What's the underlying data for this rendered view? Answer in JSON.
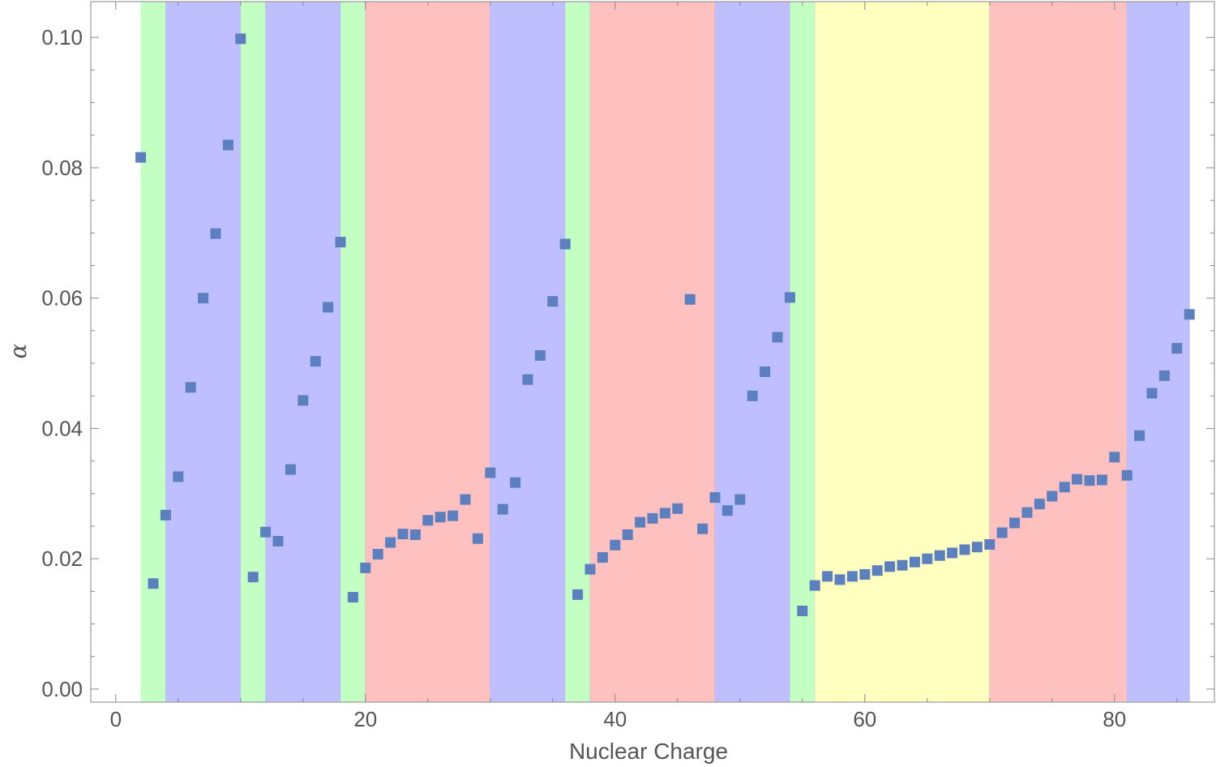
{
  "chart_data": {
    "type": "scatter",
    "title": "",
    "xlabel": "Nuclear Charge",
    "ylabel": "α",
    "xlim": [
      -2,
      88
    ],
    "ylim": [
      -0.002,
      0.1055
    ],
    "grid": false,
    "legend": "none",
    "x_ticks": [
      0,
      20,
      40,
      60,
      80
    ],
    "x_tick_labels": [
      "0",
      "20",
      "40",
      "60",
      "80"
    ],
    "y_ticks": [
      0.0,
      0.02,
      0.04,
      0.06,
      0.08,
      0.1
    ],
    "y_tick_labels": [
      "0.00",
      "0.02",
      "0.04",
      "0.06",
      "0.08",
      "0.10"
    ],
    "x_minor_step": 5,
    "y_minor_step": 0.005,
    "marker_color": "#5b7fbf",
    "bands": [
      {
        "from": 2,
        "to": 4,
        "color": "#c3ffc3"
      },
      {
        "from": 4,
        "to": 10,
        "color": "#bfbfff"
      },
      {
        "from": 10,
        "to": 12,
        "color": "#c3ffc3"
      },
      {
        "from": 12,
        "to": 18,
        "color": "#bfbfff"
      },
      {
        "from": 18,
        "to": 20,
        "color": "#c3ffc3"
      },
      {
        "from": 20,
        "to": 30,
        "color": "#ffc0c0"
      },
      {
        "from": 30,
        "to": 36,
        "color": "#bfbfff"
      },
      {
        "from": 36,
        "to": 38,
        "color": "#c3ffc3"
      },
      {
        "from": 38,
        "to": 48,
        "color": "#ffc0c0"
      },
      {
        "from": 48,
        "to": 54,
        "color": "#bfbfff"
      },
      {
        "from": 54,
        "to": 56,
        "color": "#c3ffc3"
      },
      {
        "from": 56,
        "to": 70,
        "color": "#ffffc0"
      },
      {
        "from": 70,
        "to": 81,
        "color": "#ffc0c0"
      },
      {
        "from": 81,
        "to": 86,
        "color": "#bfbfff"
      }
    ],
    "series": [
      {
        "x": [
          2,
          3,
          4,
          5,
          6,
          7,
          8,
          9,
          10,
          11,
          12,
          13,
          14,
          15,
          16,
          17,
          18,
          19,
          20,
          21,
          22,
          23,
          24,
          25,
          26,
          27,
          28,
          29,
          30,
          31,
          32,
          33,
          34,
          35,
          36,
          37,
          38,
          39,
          40,
          41,
          42,
          43,
          44,
          45,
          46,
          47,
          48,
          49,
          50,
          51,
          52,
          53,
          54,
          55,
          56,
          57,
          58,
          59,
          60,
          61,
          62,
          63,
          64,
          65,
          66,
          67,
          68,
          69,
          70,
          71,
          72,
          73,
          74,
          75,
          76,
          77,
          78,
          79,
          80,
          81,
          82,
          83,
          84,
          85,
          86
        ],
        "y": [
          0.0816,
          0.0162,
          0.0267,
          0.0326,
          0.0463,
          0.06,
          0.0699,
          0.0835,
          0.0998,
          0.0172,
          0.0241,
          0.0227,
          0.0337,
          0.0443,
          0.0503,
          0.0586,
          0.0686,
          0.0141,
          0.0186,
          0.0207,
          0.0225,
          0.0238,
          0.0237,
          0.0259,
          0.0264,
          0.0266,
          0.0291,
          0.0231,
          0.0332,
          0.0276,
          0.0317,
          0.0475,
          0.0512,
          0.0595,
          0.0683,
          0.0145,
          0.0184,
          0.0202,
          0.0221,
          0.0237,
          0.0256,
          0.0262,
          0.027,
          0.0277,
          0.0598,
          0.0246,
          0.0294,
          0.0274,
          0.0291,
          0.045,
          0.0487,
          0.054,
          0.0601,
          0.012,
          0.0159,
          0.0173,
          0.0168,
          0.0173,
          0.0176,
          0.0182,
          0.0188,
          0.019,
          0.0195,
          0.02,
          0.0205,
          0.0209,
          0.0214,
          0.0218,
          0.0222,
          0.024,
          0.0255,
          0.0271,
          0.0284,
          0.0296,
          0.031,
          0.0322,
          0.032,
          0.0321,
          0.0356,
          0.0328,
          0.0389,
          0.0454,
          0.0481,
          0.0523,
          0.0575
        ]
      }
    ]
  }
}
